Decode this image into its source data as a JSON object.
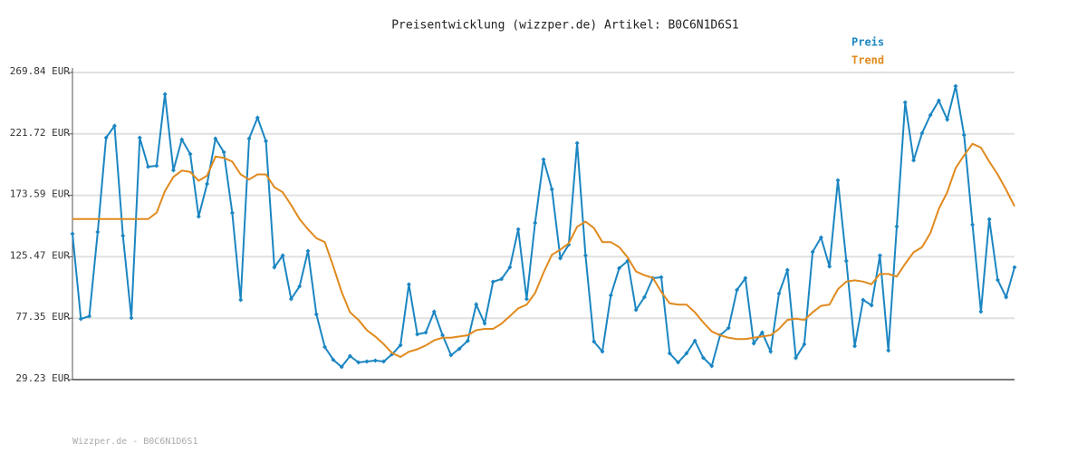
{
  "chart_data": {
    "type": "line",
    "title": "Preisentwicklung (wizzper.de) Artikel: B0C6N1D6S1",
    "footer": "Wizzper.de - B0C6N1D6S1",
    "ylim": [
      29.23,
      269.84
    ],
    "yticks": [
      {
        "value": 29.23,
        "label": "29.23 EUR"
      },
      {
        "value": 77.35,
        "label": "77.35 EUR"
      },
      {
        "value": 125.47,
        "label": "125.47 EUR"
      },
      {
        "value": 173.59,
        "label": "173.59 EUR"
      },
      {
        "value": 221.72,
        "label": "221.72 EUR"
      },
      {
        "value": 269.84,
        "label": "269.84 EUR"
      }
    ],
    "grid": true,
    "legend": "top-right",
    "series": [
      {
        "name": "Preis",
        "color": "#1b86c2",
        "markers": true,
        "values": [
          143.5,
          76.8,
          78.9,
          144.9,
          218.7,
          228,
          142,
          77.5,
          218.7,
          196,
          196.7,
          252.8,
          193.2,
          217.3,
          206,
          157,
          182.5,
          218,
          207.4,
          159.8,
          91.7,
          218,
          234.4,
          216,
          117.2,
          126.5,
          92.4,
          102.3,
          130,
          80.3,
          54.8,
          44.8,
          39.2,
          47.7,
          42.7,
          43.4,
          44.1,
          43.4,
          49.1,
          56.2,
          103.8,
          64.7,
          66.1,
          82.5,
          64,
          48.4,
          53.4,
          59.7,
          88.1,
          73.2,
          105.9,
          108,
          117.2,
          147,
          92.4,
          152,
          201.7,
          178.3,
          124.3,
          135,
          214.5,
          126.5,
          59,
          51.2,
          95.2,
          116.5,
          122.2,
          83.9,
          93.8,
          108.7,
          109.4,
          49.8,
          42.7,
          49.8,
          59.7,
          46.3,
          39.9,
          64,
          69.7,
          99.5,
          108.7,
          57.6,
          66.1,
          51.2,
          96.7,
          115.1,
          46.3,
          56.9,
          129.3,
          140.6,
          117.9,
          185.4,
          122.2,
          55.5,
          91.7,
          87.4,
          126.5,
          52,
          149.2,
          246.4,
          201,
          222.3,
          236.5,
          247.8,
          232.9,
          259.2,
          220.9,
          150.6,
          82.5,
          154.9,
          107.3,
          93.8,
          117.2
        ]
      },
      {
        "name": "Trend",
        "color": "#e08a1e",
        "markers": false,
        "values": [
          155,
          155,
          155,
          155,
          155,
          155,
          155,
          155,
          155,
          155,
          160,
          177,
          188,
          193,
          192,
          185,
          189,
          204,
          203,
          200,
          190,
          186,
          190,
          190,
          180,
          176,
          166,
          155,
          147,
          140,
          137,
          118,
          98,
          82,
          76,
          68,
          63,
          57,
          50,
          47,
          51,
          53,
          56,
          60,
          62,
          62,
          63,
          64,
          68,
          69,
          69,
          73,
          79,
          85,
          88,
          97,
          113,
          127,
          131,
          136,
          149,
          153,
          148,
          137,
          137,
          133,
          125,
          114,
          111,
          109,
          98,
          89,
          88,
          88,
          82,
          74,
          67,
          64,
          62,
          61,
          61,
          62,
          63,
          64,
          69,
          76,
          77,
          76,
          82,
          87,
          88,
          100,
          106,
          107,
          106,
          104,
          112,
          112,
          110,
          120,
          129,
          133,
          144,
          163,
          176,
          195,
          205,
          214,
          211,
          200,
          190,
          178,
          165
        ]
      }
    ]
  }
}
